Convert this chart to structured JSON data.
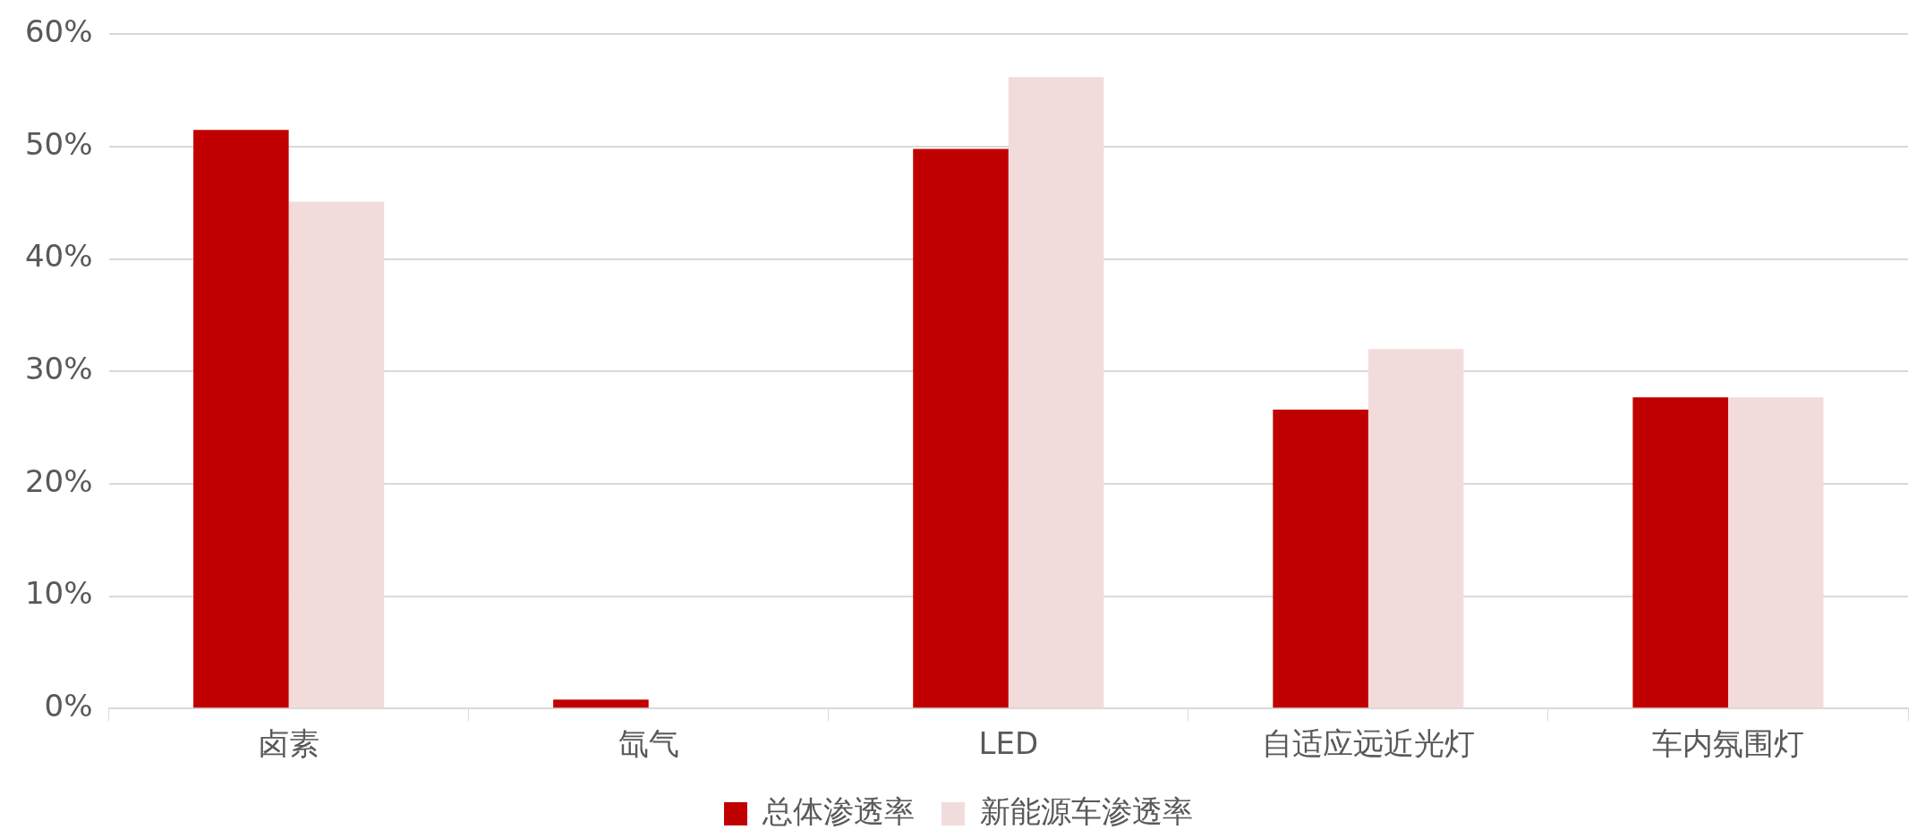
{
  "chart_data": {
    "type": "bar",
    "categories": [
      "卤素",
      "氙气",
      "LED",
      "自适应远近光灯",
      "车内氛围灯"
    ],
    "series": [
      {
        "name": "总体渗透率",
        "color": "#c00000",
        "values": [
          0.515,
          0.008,
          0.498,
          0.266,
          0.277
        ]
      },
      {
        "name": "新能源车渗透率",
        "color": "#f2dcdb",
        "values": [
          0.451,
          0,
          0.562,
          0.32,
          0.277
        ]
      }
    ],
    "ylim": [
      0,
      0.6
    ],
    "yticks": [
      {
        "value": 0,
        "label": "0%"
      },
      {
        "value": 0.1,
        "label": "10%"
      },
      {
        "value": 0.2,
        "label": "20%"
      },
      {
        "value": 0.3,
        "label": "30%"
      },
      {
        "value": 0.4,
        "label": "40%"
      },
      {
        "value": 0.5,
        "label": "50%"
      },
      {
        "value": 0.6,
        "label": "60%"
      }
    ],
    "grid": "y",
    "legend": "bottom"
  }
}
